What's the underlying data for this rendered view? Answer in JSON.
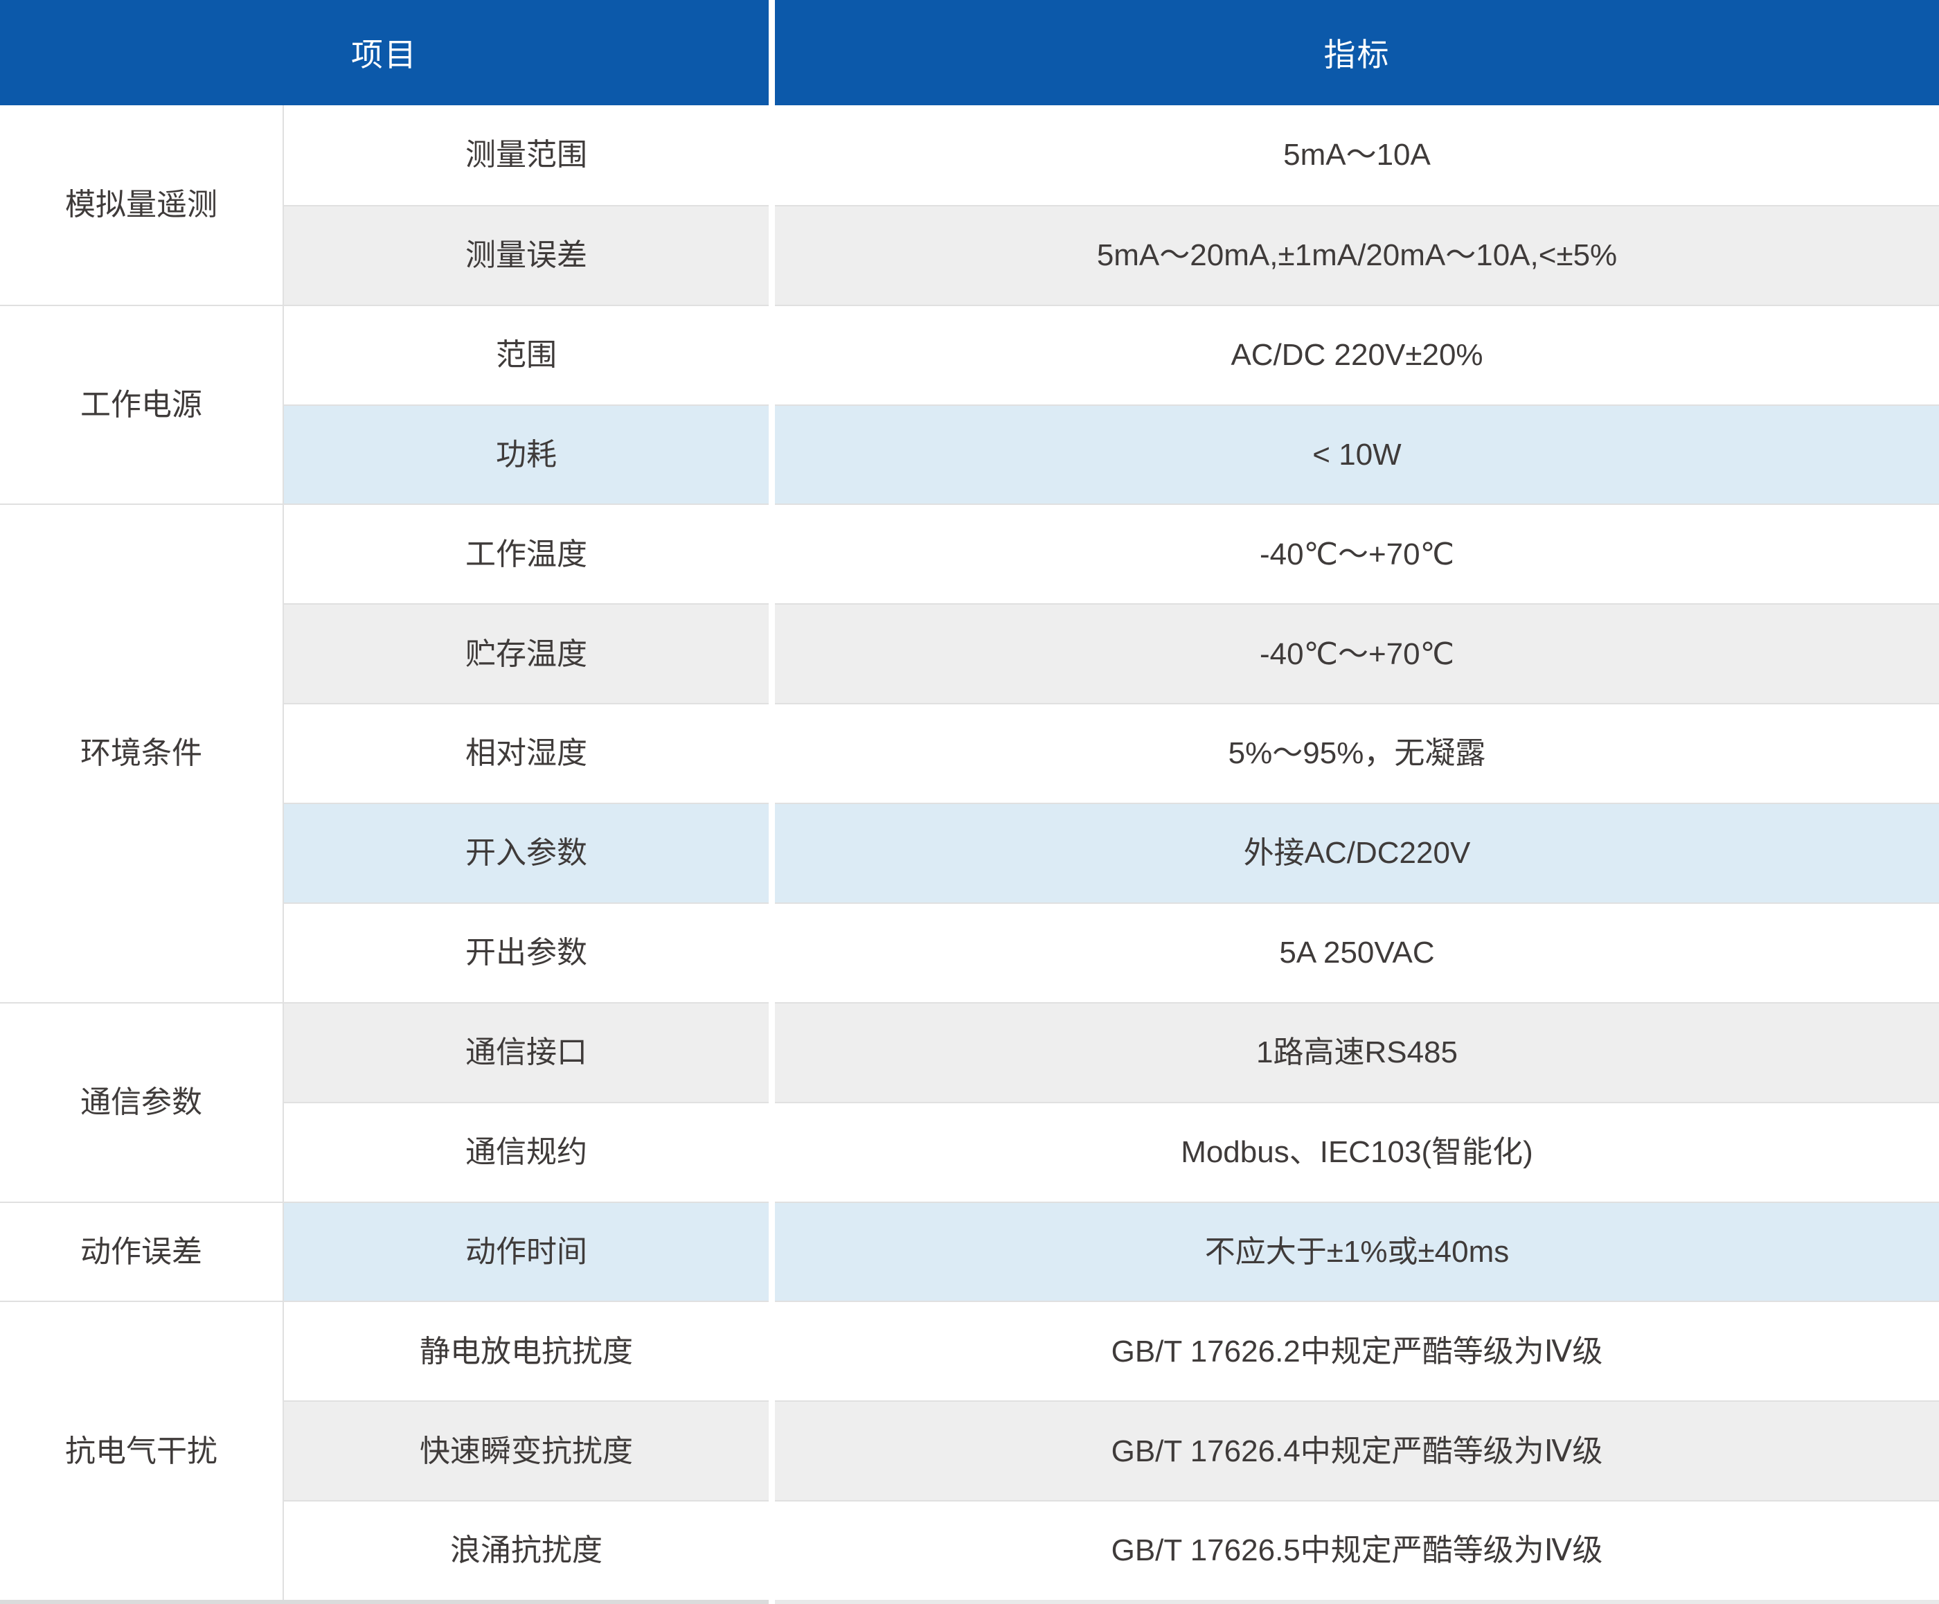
{
  "header": {
    "item_label": "项目",
    "spec_label": "指标"
  },
  "groups": [
    {
      "category": "模拟量遥测",
      "rows": [
        {
          "item": "测量范围",
          "value": "5mA～10A"
        },
        {
          "item": "测量误差",
          "value": "5mA～20mA,±1mA/20mA～10A,<±5%"
        }
      ]
    },
    {
      "category": "工作电源",
      "rows": [
        {
          "item": "范围",
          "value": "AC/DC 220V±20%"
        },
        {
          "item": "功耗",
          "value": "< 10W"
        }
      ]
    },
    {
      "category": "环境条件",
      "rows": [
        {
          "item": "工作温度",
          "value": "-40℃～+70℃"
        },
        {
          "item": "贮存温度",
          "value": "-40℃～+70℃"
        },
        {
          "item": "相对湿度",
          "value": "5%～95%，无凝露"
        },
        {
          "item": "开入参数",
          "value": "外接AC/DC220V"
        },
        {
          "item": "开出参数",
          "value": "5A 250VAC"
        }
      ]
    },
    {
      "category": "通信参数",
      "rows": [
        {
          "item": "通信接口",
          "value": "1路高速RS485"
        },
        {
          "item": "通信规约",
          "value": "Modbus、IEC103(智能化)"
        }
      ]
    },
    {
      "category": "动作误差",
      "rows": [
        {
          "item": "动作时间",
          "value": "不应大于±1%或±40ms"
        }
      ]
    },
    {
      "category": "抗电气干扰",
      "rows": [
        {
          "item": "静电放电抗扰度",
          "value": "GB/T 17626.2中规定严酷等级为Ⅳ级"
        },
        {
          "item": "快速瞬变抗扰度",
          "value": "GB/T 17626.4中规定严酷等级为Ⅳ级"
        },
        {
          "item": "浪涌抗扰度",
          "value": "GB/T 17626.5中规定严酷等级为Ⅳ级"
        }
      ]
    }
  ],
  "row_stripe_cycle": [
    "white",
    "gray",
    "white",
    "blue"
  ],
  "colors": {
    "header_bg": "#0C59AA",
    "header_text": "#FFFFFF",
    "row_gray": "#EEEEEE",
    "row_blue": "#DCEBF5",
    "border_gray": "#E0E0E0",
    "text_color": "#3F3B3A",
    "strip_left": "#DBDBDB",
    "strip_right": "#E9E9E9"
  }
}
